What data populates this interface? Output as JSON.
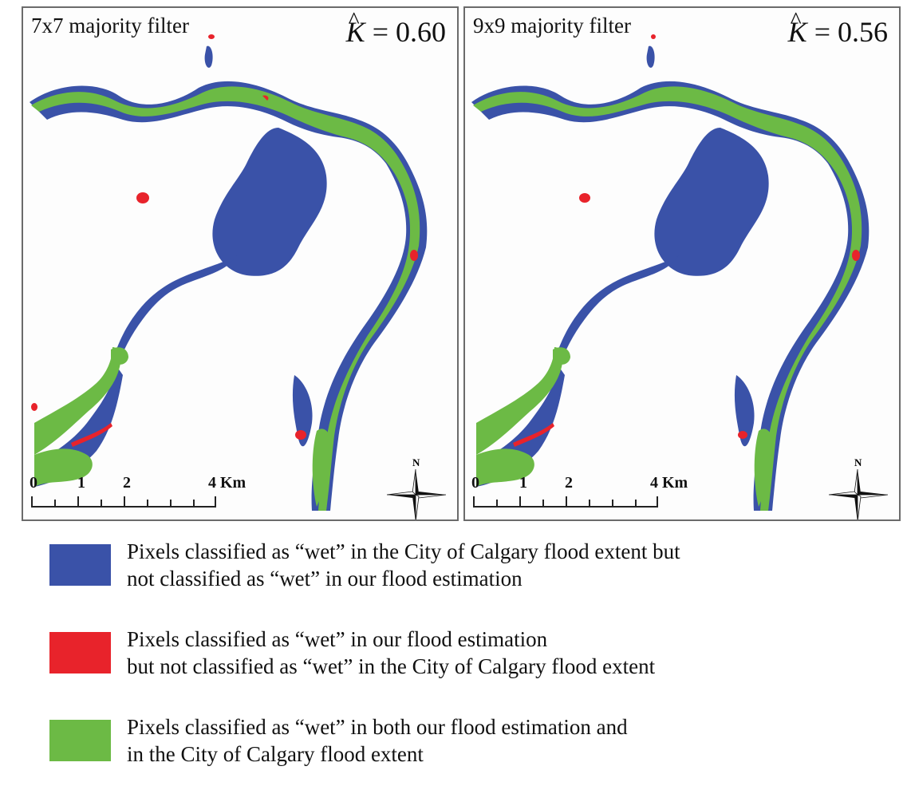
{
  "panels": [
    {
      "title": "7x7 majority filter",
      "kappa_symbol": "K",
      "kappa_value": "= 0.60",
      "scale_labels": [
        "0",
        "1",
        "2",
        "4 Km"
      ],
      "north_label": "N"
    },
    {
      "title": "9x9 majority filter",
      "kappa_symbol": "K",
      "kappa_value": "= 0.56",
      "scale_labels": [
        "0",
        "1",
        "2",
        "4 Km"
      ],
      "north_label": "N"
    }
  ],
  "colors": {
    "blue": "#3a52a8",
    "red": "#e8232b",
    "green": "#6cba45"
  },
  "legend": [
    {
      "color": "#3a52a8",
      "line1": "Pixels classified as “wet” in the City of Calgary flood extent but",
      "line2": "not classified as “wet” in our flood estimation"
    },
    {
      "color": "#e8232b",
      "line1": "Pixels classified as “wet” in our flood estimation",
      "line2": "but not classified as “wet” in the City of Calgary flood extent"
    },
    {
      "color": "#6cba45",
      "line1": "Pixels classified as “wet” in both our flood estimation and",
      "line2": "in the City of Calgary flood extent"
    }
  ]
}
